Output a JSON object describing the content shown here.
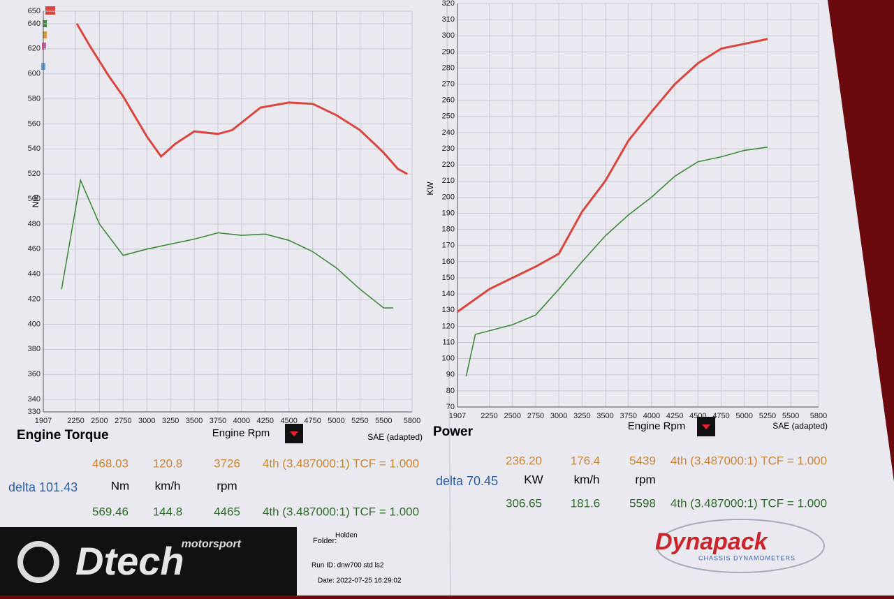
{
  "chart_data": [
    {
      "type": "line",
      "title": "Engine Torque",
      "x_label": "Engine Rpm",
      "y_label": "Nm",
      "note": "SAE (adapted)",
      "xlim": [
        1907,
        5800
      ],
      "xticks": [
        1907,
        2250,
        2500,
        2750,
        3000,
        3250,
        3500,
        3750,
        4000,
        4250,
        4500,
        4750,
        5000,
        5250,
        5500,
        5800
      ],
      "ylim": [
        330,
        650
      ],
      "yticks": [
        330,
        340,
        360,
        380,
        400,
        420,
        440,
        460,
        480,
        500,
        520,
        540,
        560,
        580,
        600,
        620,
        640,
        650
      ],
      "grid": true,
      "series": [
        {
          "color": "#d9463f",
          "x": [
            2261,
            2400,
            2600,
            2750,
            3000,
            3150,
            3300,
            3500,
            3750,
            3900,
            4200,
            4500,
            4750,
            5000,
            5250,
            5500,
            5650,
            5750
          ],
          "values": [
            640,
            622,
            598,
            582,
            550,
            534,
            544,
            554,
            552,
            555,
            573,
            577,
            576,
            567,
            555,
            537,
            524,
            520
          ]
        },
        {
          "color": "#3f8a3a",
          "x": [
            2100,
            2300,
            2500,
            2750,
            3000,
            3250,
            3500,
            3750,
            4000,
            4250,
            4500,
            4750,
            5000,
            5250,
            5500,
            5600
          ],
          "values": [
            428,
            515,
            480,
            455,
            460,
            464,
            468,
            473,
            471,
            472,
            467,
            458,
            445,
            428,
            413,
            413
          ]
        }
      ]
    },
    {
      "type": "line",
      "title": "Power",
      "x_label": "Engine Rpm",
      "y_label": "KW",
      "note": "SAE (adapted)",
      "xlim": [
        1907,
        5800
      ],
      "xticks": [
        1907,
        2250,
        2500,
        2750,
        3000,
        3250,
        3500,
        3750,
        4000,
        4250,
        4500,
        4750,
        5000,
        5250,
        5500,
        5800
      ],
      "ylim": [
        70,
        320
      ],
      "yticks": [
        70,
        80,
        90,
        100,
        110,
        120,
        130,
        140,
        150,
        160,
        170,
        180,
        190,
        200,
        210,
        220,
        230,
        240,
        250,
        260,
        270,
        280,
        290,
        300,
        310,
        320
      ],
      "grid": true,
      "series": [
        {
          "color": "#d9463f",
          "x": [
            1907,
            2250,
            2500,
            2750,
            3000,
            3250,
            3500,
            3750,
            4000,
            4250,
            4500,
            4750,
            5000,
            5250
          ],
          "values": [
            129,
            143,
            150,
            157,
            165,
            191,
            210,
            235,
            253,
            270,
            283,
            292,
            295,
            298
          ]
        },
        {
          "color": "#3f8a3a",
          "x": [
            2000,
            2100,
            2500,
            2750,
            3000,
            3250,
            3500,
            3750,
            4000,
            4250,
            4500,
            4750,
            5000,
            5250
          ],
          "values": [
            89,
            115,
            121,
            127,
            143,
            160,
            176,
            189,
            200,
            213,
            222,
            225,
            229,
            231
          ]
        }
      ]
    }
  ],
  "readouts": [
    {
      "current": [
        "468.03",
        "120.8",
        "3726",
        "4th (3.487000:1) TCF = 1.000"
      ],
      "delta": "delta 101.43",
      "units": [
        "Nm",
        "km/h",
        "rpm"
      ],
      "peak": [
        "569.46",
        "144.8",
        "4465",
        "4th (3.487000:1) TCF = 1.000"
      ]
    },
    {
      "current": [
        "236.20",
        "176.4",
        "5439",
        "4th (3.487000:1) TCF = 1.000"
      ],
      "delta": "delta 70.45",
      "units": [
        "KW",
        "km/h",
        "rpm"
      ],
      "peak": [
        "306.65",
        "181.6",
        "5598",
        "4th (3.487000:1) TCF = 1.000"
      ]
    }
  ],
  "footer": {
    "brand_small": "motorsport",
    "brand": "Dtech",
    "folder_label": "Folder:",
    "folder": "Holden",
    "run_id": "Run ID: dnw700 std ls2",
    "date": "Date: 2022-07-25 16:29:02",
    "maker": "Dynapack",
    "maker_sub": "CHASSIS DYNAMOMETERS"
  }
}
